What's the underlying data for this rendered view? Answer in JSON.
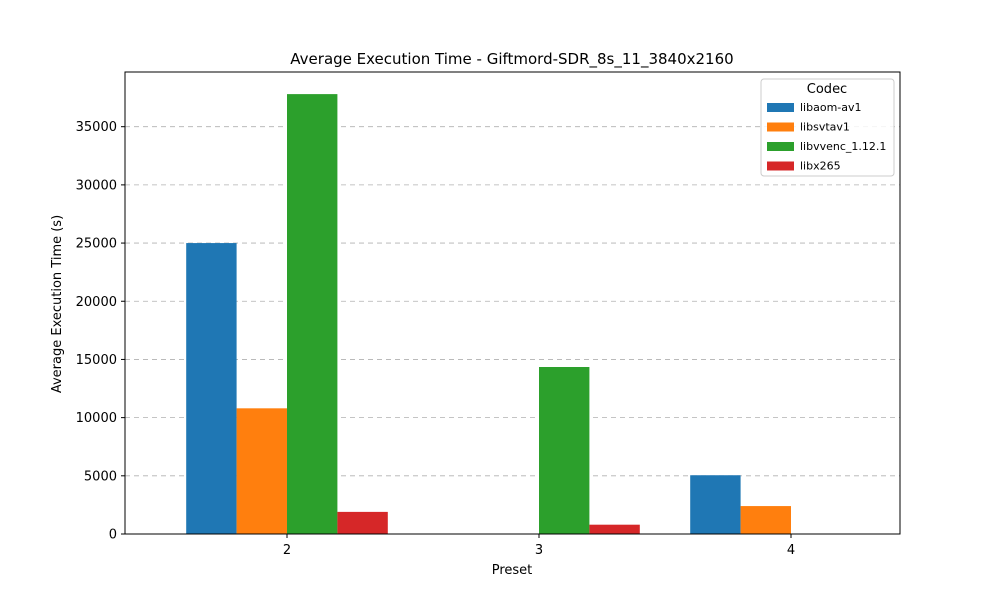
{
  "chart_data": {
    "type": "bar",
    "title": "Average Execution Time - Giftmord-SDR_8s_11_3840x2160",
    "xlabel": "Preset",
    "ylabel": "Average Execution Time (s)",
    "categories": [
      "2",
      "3",
      "4"
    ],
    "ylim": [
      0,
      39700
    ],
    "yticks": [
      0,
      5000,
      10000,
      15000,
      20000,
      25000,
      30000,
      35000
    ],
    "grid": "y-dashed",
    "legend": {
      "title": "Codec",
      "placement": "top-right"
    },
    "series": [
      {
        "name": "libaom-av1",
        "color": "#1f77b4",
        "values": [
          25000,
          null,
          5050
        ]
      },
      {
        "name": "libsvtav1",
        "color": "#ff7f0e",
        "values": [
          10800,
          null,
          2400
        ]
      },
      {
        "name": "libvvenc_1.12.1",
        "color": "#2ca02c",
        "values": [
          37800,
          14350,
          null
        ]
      },
      {
        "name": "libx265",
        "color": "#d62728",
        "values": [
          1900,
          800,
          null
        ]
      }
    ]
  }
}
